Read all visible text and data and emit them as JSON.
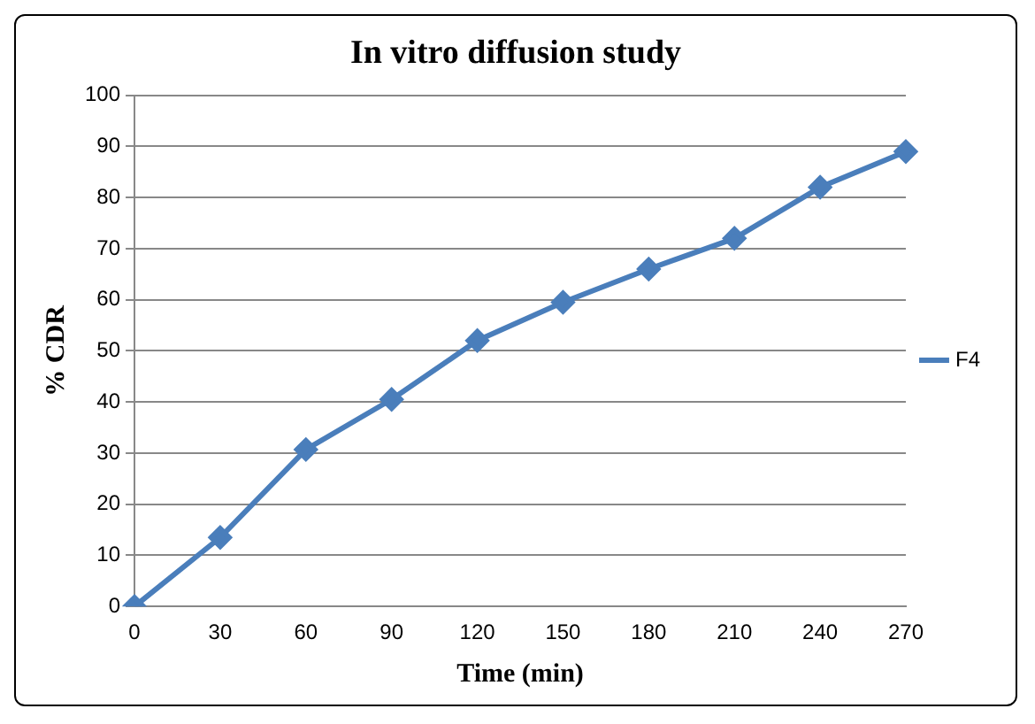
{
  "chart_data": {
    "type": "line",
    "title": "In vitro diffusion study",
    "xlabel": "Time (min)",
    "ylabel": "% CDR",
    "categories": [
      "0",
      "30",
      "60",
      "90",
      "120",
      "150",
      "180",
      "210",
      "240",
      "270"
    ],
    "series": [
      {
        "name": "F4",
        "color": "#4a7ebb",
        "values": [
          0,
          13.5,
          30.7,
          40.5,
          52,
          59.5,
          66,
          72,
          82,
          89
        ]
      }
    ],
    "ylim": [
      0,
      100
    ],
    "yticks": [
      0,
      10,
      20,
      30,
      40,
      50,
      60,
      70,
      80,
      90,
      100
    ],
    "grid": "y",
    "legend": "right",
    "marker": "diamond",
    "line_style": "solid"
  }
}
